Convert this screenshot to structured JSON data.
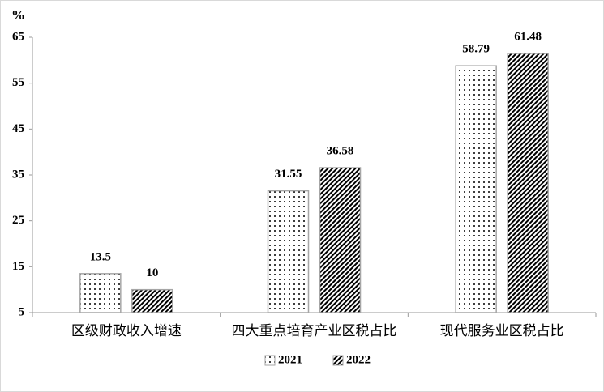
{
  "chart_data": {
    "type": "bar",
    "unit_label": "%",
    "categories": [
      "区级财政收入增速",
      "四大重点培育产业区税占比",
      "现代服务业区税占比"
    ],
    "series": [
      {
        "name": "2021",
        "pattern": "dots",
        "color": "#000000",
        "values": [
          13.5,
          31.55,
          58.79
        ]
      },
      {
        "name": "2022",
        "pattern": "hatch",
        "color": "#000000",
        "values": [
          10,
          36.58,
          61.48
        ]
      }
    ],
    "ylim": [
      5,
      65
    ],
    "yticks": [
      5,
      15,
      25,
      35,
      45,
      55,
      65
    ],
    "legend": "bottom"
  }
}
